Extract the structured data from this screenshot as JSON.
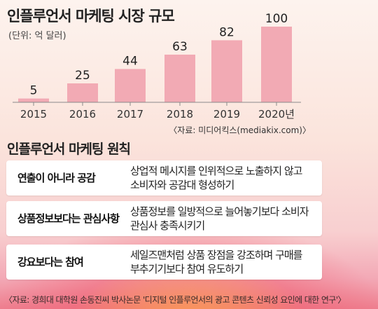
{
  "title": "인플루언서 마케팅 시장 규모",
  "unit": "(단위: 억 달러)",
  "chart_data": {
    "type": "bar",
    "categories": [
      "2015",
      "2016",
      "2017",
      "2018",
      "2019",
      "2020년"
    ],
    "values": [
      5,
      25,
      44,
      63,
      82,
      100
    ],
    "ylim": [
      0,
      100
    ],
    "grid": false,
    "bar_color": "#f2aab4",
    "axis_color": "#8a8a8a"
  },
  "source_chart": "〈자료: 미디어킥스(mediakix.com)〉",
  "principles": {
    "title": "인플루언서 마케팅 원칙",
    "rows": [
      {
        "label": "연출이 아니라 공감",
        "desc": [
          "상업적 메시지를 인위적으로 노출하지 않고",
          "소비자와 공감대 형성하기"
        ]
      },
      {
        "label": "상품정보보다는 관심사항",
        "desc": [
          "상품정보를 일방적으로 늘어놓기보다 소비자",
          "관심사 충족시키기"
        ]
      },
      {
        "label": "강요보다는 참여",
        "desc": [
          "세일즈맨처럼 상품 장점을 강조하며 구매를",
          "부추기기보다 참여 유도하기"
        ]
      }
    ]
  },
  "source_bottom": "〈자료: 경희대 대학원 손동진씨 박사논문 '디지털 인플루언서의 광고 콘텐츠 신뢰성 요인에 대한 연구'〉"
}
